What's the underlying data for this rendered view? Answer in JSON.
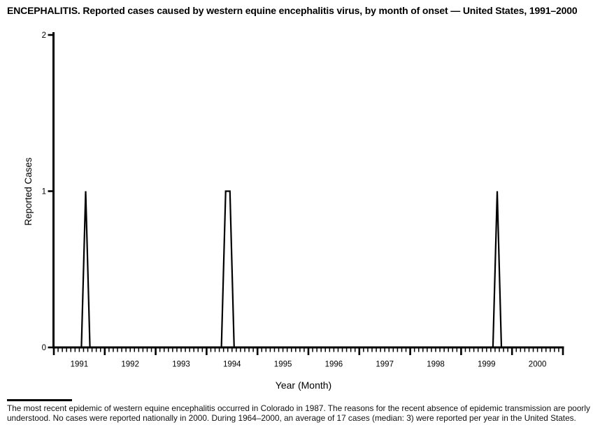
{
  "title": "ENCEPHALITIS. Reported cases caused by western equine encephalitis virus, by month of onset — United States, 1991–2000",
  "chart_data": {
    "type": "line",
    "title": "ENCEPHALITIS. Reported cases caused by western equine encephalitis virus, by month of onset — United States, 1991–2000",
    "xlabel": "Year (Month)",
    "ylabel": "Reported Cases",
    "ylim": [
      0,
      2
    ],
    "yticks": [
      "0",
      "1",
      "2"
    ],
    "x_unit": "month",
    "years": [
      "1991",
      "1992",
      "1993",
      "1994",
      "1995",
      "1996",
      "1997",
      "1998",
      "1999",
      "2000"
    ],
    "months_per_year": 12,
    "baseline_value": 0,
    "cases": [
      {
        "year": "1991",
        "month": "Aug",
        "value": 1
      },
      {
        "year": "1994",
        "month": "May",
        "value": 1
      },
      {
        "year": "1994",
        "month": "Jun",
        "value": 1
      },
      {
        "year": "1999",
        "month": "Sep",
        "value": 1
      }
    ],
    "line_color": "#000000",
    "axis_color": "#000000",
    "grid": false,
    "legend_position": "none"
  },
  "footnote": {
    "text": "The most recent epidemic of western equine encephalitis occurred in Colorado in 1987. The reasons for the recent absence of epidemic transmission are poorly understood. No cases were reported nationally in 2000. During 1964–2000, an average of 17 cases (median: 3) were reported per year in the United States."
  }
}
